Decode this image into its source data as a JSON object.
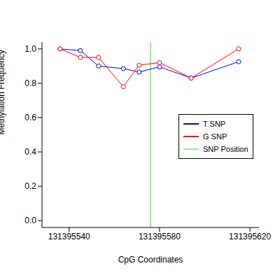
{
  "chart_data": {
    "type": "line",
    "x_label": "CpG Coordinates",
    "y_label": "Methylation Frequency",
    "x": [
      131395536,
      131395545,
      131395553,
      131395564,
      131395571,
      131395580,
      131395594,
      131395615
    ],
    "series": [
      {
        "name": "T SNP",
        "color": "#0000ff",
        "marker": "open_circle",
        "values": [
          1.0,
          0.99,
          0.9,
          0.885,
          0.865,
          0.895,
          0.83,
          0.925
        ]
      },
      {
        "name": "G SNP",
        "color": "#ff0000",
        "marker": "open_circle",
        "values": [
          1.0,
          0.95,
          0.95,
          0.78,
          0.905,
          0.92,
          0.83,
          1.0
        ]
      }
    ],
    "snp": {
      "name": "SNP Position",
      "color": "#90ee90",
      "x": 131395576
    },
    "xlim": [
      131395528,
      131395624
    ],
    "xticks": [
      131395540,
      131395580,
      131395620
    ],
    "ylim": [
      -0.04,
      1.04
    ],
    "yticks": [
      {
        "value": 0,
        "label": "0.0"
      },
      0.2,
      0.4,
      0.6,
      0.8,
      {
        "value": 1,
        "label": "1.0"
      }
    ],
    "legend": "right"
  }
}
